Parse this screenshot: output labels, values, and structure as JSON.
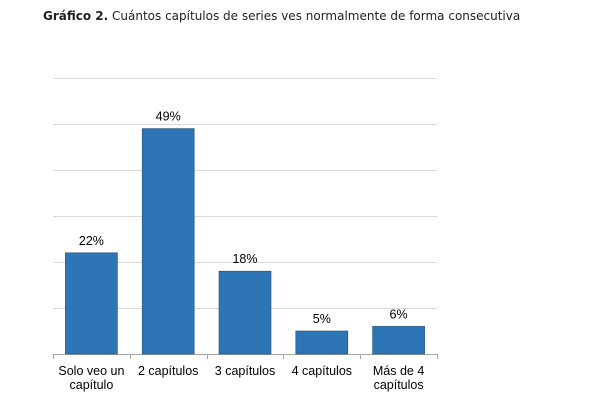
{
  "header": {
    "title_prefix": "Gráfico 2.",
    "title_text": "Cuántos capítulos de series ves normalmente de forma consecutiva"
  },
  "chart_data": {
    "type": "bar",
    "title": "Gráfico 2. Cuántos capítulos de series ves normalmente de forma consecutiva",
    "categories": [
      "Solo veo un capítulo",
      "2 capítulos",
      "3 capítulos",
      "4 capítulos",
      "Más de 4 capítulos"
    ],
    "category_lines": [
      [
        "Solo veo un",
        "capítulo"
      ],
      [
        "2 capítulos"
      ],
      [
        "3 capítulos"
      ],
      [
        "4 capítulos"
      ],
      [
        "Más de 4",
        "capítulos"
      ]
    ],
    "values": [
      22,
      49,
      18,
      5,
      6
    ],
    "data_labels": [
      "22%",
      "49%",
      "18%",
      "5%",
      "6%"
    ],
    "unit": "%",
    "xlabel": "",
    "ylabel": "",
    "ylim": [
      0,
      60
    ],
    "grid": true,
    "legend": "none",
    "bar_color": "#2e75b6",
    "grid_color": "#d9d9d9"
  }
}
